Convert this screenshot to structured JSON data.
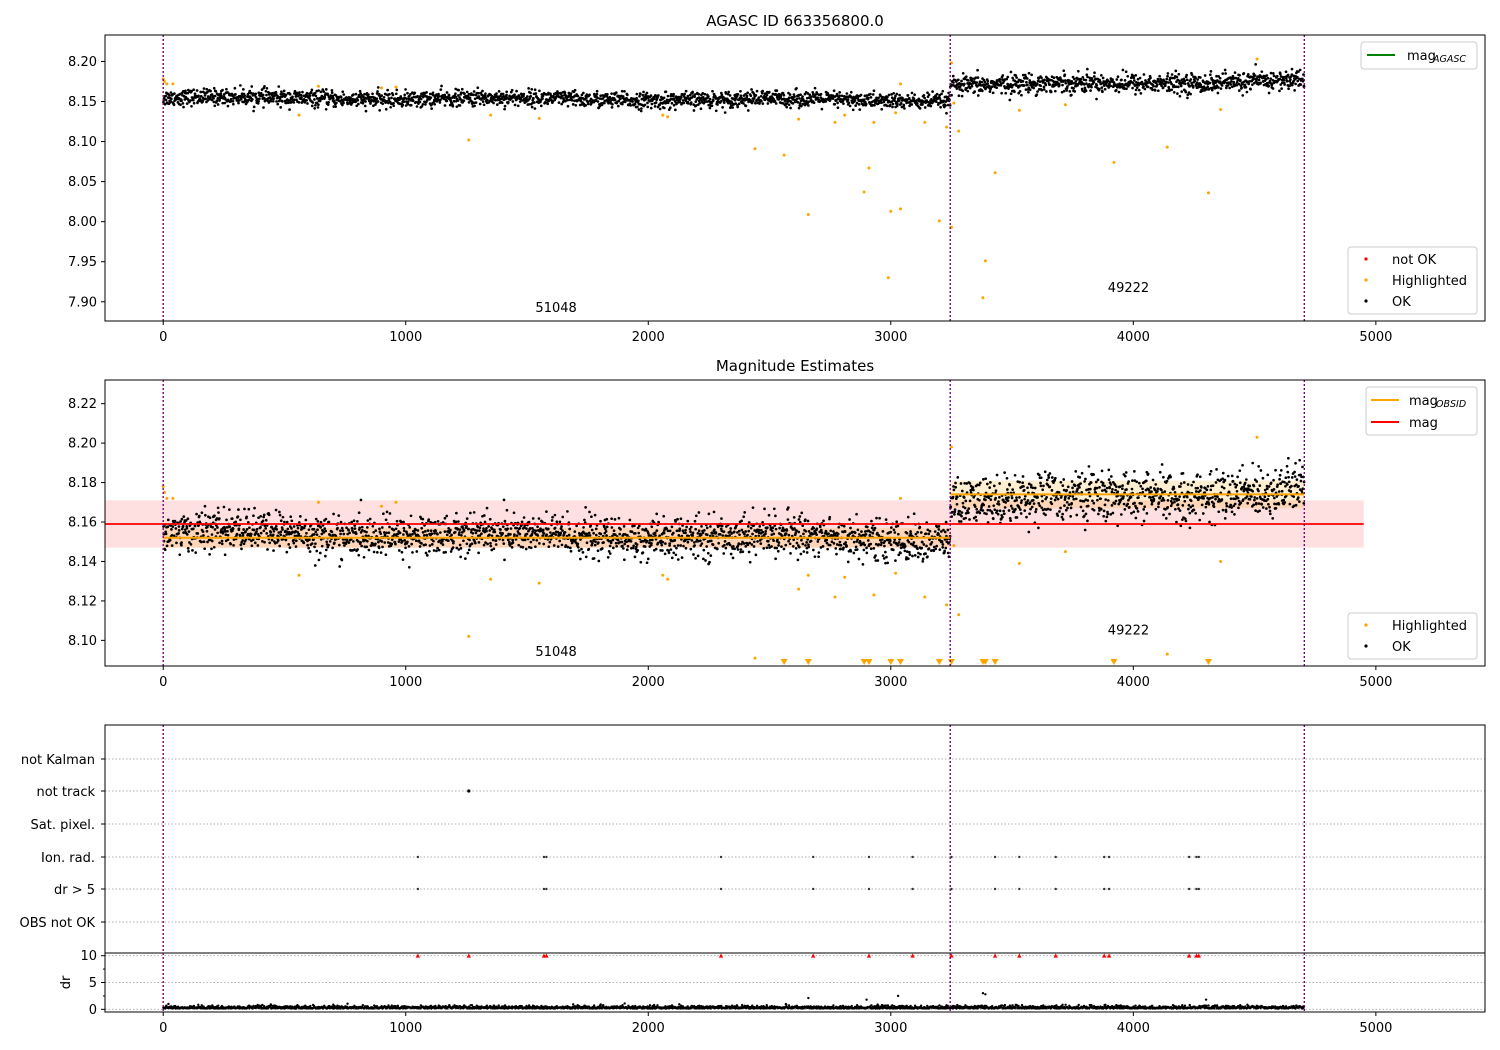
{
  "chart_data": [
    {
      "type": "scatter",
      "title": "AGASC ID 663356800.0",
      "xlim": [
        -240,
        5450
      ],
      "ylim": [
        7.876,
        8.233
      ],
      "xticks": [
        0,
        1000,
        2000,
        3000,
        4000,
        5000
      ],
      "yticks": [
        7.9,
        7.95,
        8.0,
        8.05,
        8.1,
        8.15,
        8.2
      ],
      "vlines": [
        0,
        3245,
        4705
      ],
      "obsid_labels": [
        {
          "text": "51048",
          "x": 1620,
          "y": 7.887
        },
        {
          "text": "49222",
          "x": 3980,
          "y": 7.912
        }
      ],
      "legend_lines": [
        {
          "name": "mag",
          "subscript": "AGASC",
          "color": "#008000"
        }
      ],
      "legend_markers": [
        {
          "name": "not OK",
          "color": "#ff0000"
        },
        {
          "name": "Highlighted",
          "color": "#ffa500"
        },
        {
          "name": "OK",
          "color": "#000000"
        }
      ],
      "segments": [
        {
          "x0": 0,
          "x1": 3245,
          "level": 8.153,
          "trend": -0.003,
          "noise": 0.005
        },
        {
          "x0": 3245,
          "x1": 4705,
          "level": 8.173,
          "trend": 0.006,
          "noise": 0.006
        }
      ],
      "highlighted_points": [
        [
          0,
          8.178
        ],
        [
          5,
          8.175
        ],
        [
          15,
          8.172
        ],
        [
          40,
          8.172
        ],
        [
          560,
          8.133
        ],
        [
          640,
          8.169
        ],
        [
          900,
          8.167
        ],
        [
          960,
          8.168
        ],
        [
          1260,
          8.102
        ],
        [
          1350,
          8.133
        ],
        [
          1550,
          8.129
        ],
        [
          2060,
          8.133
        ],
        [
          2080,
          8.131
        ],
        [
          2440,
          8.091
        ],
        [
          2560,
          8.083
        ],
        [
          2620,
          8.128
        ],
        [
          2660,
          8.009
        ],
        [
          2770,
          8.124
        ],
        [
          2810,
          8.133
        ],
        [
          2890,
          8.037
        ],
        [
          2910,
          8.067
        ],
        [
          2930,
          8.124
        ],
        [
          2990,
          7.93
        ],
        [
          3000,
          8.013
        ],
        [
          3020,
          8.136
        ],
        [
          3040,
          8.016
        ],
        [
          3040,
          8.172
        ],
        [
          3140,
          8.124
        ],
        [
          3200,
          8.001
        ],
        [
          3230,
          8.118
        ],
        [
          3250,
          7.993
        ],
        [
          3250,
          8.198
        ],
        [
          3260,
          8.148
        ],
        [
          3280,
          8.113
        ],
        [
          3380,
          7.905
        ],
        [
          3390,
          7.951
        ],
        [
          3430,
          8.061
        ],
        [
          3530,
          8.139
        ],
        [
          3720,
          8.146
        ],
        [
          3920,
          8.074
        ],
        [
          4140,
          8.093
        ],
        [
          4310,
          8.036
        ],
        [
          4360,
          8.14
        ],
        [
          4510,
          8.203
        ]
      ]
    },
    {
      "type": "scatter",
      "title": "Magnitude Estimates",
      "xlim": [
        -240,
        5450
      ],
      "ylim": [
        8.087,
        8.232
      ],
      "xticks": [
        0,
        1000,
        2000,
        3000,
        4000,
        5000
      ],
      "yticks": [
        8.1,
        8.12,
        8.14,
        8.16,
        8.18,
        8.2,
        8.22
      ],
      "vlines": [
        0,
        3245,
        4705
      ],
      "obsid_labels": [
        {
          "text": "51048",
          "x": 1620,
          "y": 8.092
        },
        {
          "text": "49222",
          "x": 3980,
          "y": 8.103
        }
      ],
      "legend_lines": [
        {
          "name": "mag",
          "subscript": "OBSID",
          "color": "#ffa500"
        },
        {
          "name": "mag",
          "subscript": "",
          "color": "#ff0000"
        }
      ],
      "legend_markers": [
        {
          "name": "Highlighted",
          "color": "#ffa500"
        },
        {
          "name": "OK",
          "color": "#000000"
        }
      ],
      "mag": {
        "value": 8.159,
        "x0": -240,
        "x1": 4950,
        "band": [
          8.147,
          8.171
        ],
        "color": "#ff0000"
      },
      "mag_obsid": [
        {
          "x0": 0,
          "x1": 3245,
          "value": 8.152,
          "band": [
            8.147,
            8.157
          ]
        },
        {
          "x0": 3245,
          "x1": 4705,
          "value": 8.174,
          "band": [
            8.167,
            8.181
          ]
        }
      ],
      "segments": [
        {
          "x0": 0,
          "x1": 3245,
          "level": 8.153,
          "trend": -0.003,
          "noise": 0.005
        },
        {
          "x0": 3245,
          "x1": 4705,
          "level": 8.173,
          "trend": 0.006,
          "noise": 0.006
        }
      ],
      "highlighted_points": [
        [
          0,
          8.178
        ],
        [
          5,
          8.175
        ],
        [
          15,
          8.172
        ],
        [
          40,
          8.172
        ],
        [
          560,
          8.133
        ],
        [
          640,
          8.17
        ],
        [
          900,
          8.168
        ],
        [
          960,
          8.17
        ],
        [
          1260,
          8.102
        ],
        [
          1350,
          8.131
        ],
        [
          1550,
          8.129
        ],
        [
          2060,
          8.133
        ],
        [
          2080,
          8.131
        ],
        [
          2440,
          8.091
        ],
        [
          2620,
          8.126
        ],
        [
          2660,
          8.133
        ],
        [
          2770,
          8.122
        ],
        [
          2810,
          8.132
        ],
        [
          2930,
          8.123
        ],
        [
          3020,
          8.134
        ],
        [
          3040,
          8.172
        ],
        [
          3140,
          8.122
        ],
        [
          3230,
          8.118
        ],
        [
          3250,
          8.198
        ],
        [
          3260,
          8.148
        ],
        [
          3280,
          8.113
        ],
        [
          3530,
          8.139
        ],
        [
          3720,
          8.145
        ],
        [
          4140,
          8.093
        ],
        [
          4360,
          8.14
        ],
        [
          4510,
          8.203
        ]
      ],
      "below_range_markers": [
        2560,
        2660,
        2890,
        2910,
        3000,
        3040,
        3200,
        3250,
        3380,
        3390,
        3430,
        3920,
        4310
      ]
    },
    {
      "type": "scatter",
      "title": "",
      "xlim": [
        -240,
        5450
      ],
      "xticks": [
        0,
        1000,
        2000,
        3000,
        4000,
        5000
      ],
      "vlines": [
        0,
        3245,
        4705
      ],
      "flag_rows": [
        "not Kalman",
        "not track",
        "Sat. pixel.",
        "Ion. rad.",
        "dr > 5",
        "OBS not OK"
      ],
      "flag_points": {
        "not Kalman": [],
        "not track": [
          1260
        ],
        "Sat. pixel.": [],
        "Ion. rad.": [
          1050,
          1570,
          1580,
          2300,
          2680,
          2910,
          3090,
          3250,
          3430,
          3530,
          3680,
          3880,
          3900,
          4230,
          4260,
          4270
        ],
        "dr > 5": [
          1050,
          1570,
          1580,
          2300,
          2680,
          2910,
          3090,
          3250,
          3430,
          3530,
          3680,
          3880,
          3900,
          4230,
          4260,
          4270
        ],
        "OBS not OK": []
      },
      "dr": {
        "ylabel": "dr",
        "ylim": [
          -0.5,
          10.5
        ],
        "yticks": [
          0,
          5,
          10
        ],
        "clipped_points": [
          1050,
          1260,
          1570,
          1580,
          2300,
          2680,
          2910,
          3090,
          3250,
          3430,
          3530,
          3680,
          3880,
          3900,
          4230,
          4260,
          4270
        ],
        "outliers": [
          [
            2660,
            2.1
          ],
          [
            2900,
            1.8
          ],
          [
            3030,
            2.5
          ],
          [
            3380,
            3.0
          ],
          [
            3390,
            2.8
          ],
          [
            4300,
            1.8
          ]
        ]
      }
    }
  ]
}
